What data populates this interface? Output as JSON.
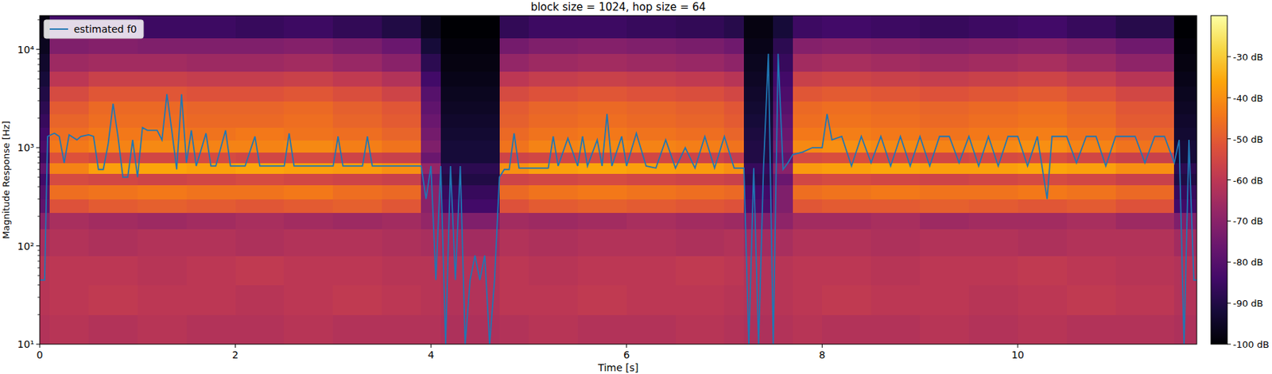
{
  "chart_data": {
    "type": "spectrogram",
    "title": "block size = 1024, hop size = 64",
    "x_label": "Time [s]",
    "y_label": "Magnitude Response [Hz]",
    "xlim": [
      0,
      11.83
    ],
    "xticks": [
      0,
      2,
      4,
      6,
      8,
      10
    ],
    "ylim": [
      10,
      22050
    ],
    "yticks": [
      {
        "value": 10,
        "label": "10¹"
      },
      {
        "value": 100,
        "label": "10²"
      },
      {
        "value": 1000,
        "label": "10³"
      },
      {
        "value": 10000,
        "label": "10⁴"
      }
    ],
    "log": "y",
    "grid": false,
    "legend": "upper left",
    "time_edges": [
      0,
      0.1,
      0.5,
      1.0,
      1.5,
      2.0,
      2.5,
      3.0,
      3.5,
      3.9,
      4.1,
      4.7,
      5.0,
      5.5,
      6.0,
      6.5,
      7.0,
      7.2,
      7.5,
      7.7,
      8.0,
      8.5,
      9.0,
      9.5,
      10.0,
      10.5,
      11.0,
      11.6,
      11.83
    ],
    "freq_edges": [
      10,
      20,
      40,
      80,
      150,
      220,
      300,
      420,
      550,
      700,
      900,
      1200,
      1600,
      2200,
      3000,
      4200,
      6000,
      9000,
      13000,
      22050
    ],
    "cells": [
      [
        -62,
        -61,
        -62,
        -61,
        -62,
        -62,
        -61,
        -62,
        -62,
        -62,
        -63,
        -62,
        -61,
        -62,
        -62,
        -61,
        -62,
        -63,
        -62,
        -61,
        -62,
        -62,
        -61,
        -62,
        -61,
        -62,
        -62,
        -63
      ],
      [
        -61,
        -60,
        -59,
        -60,
        -60,
        -61,
        -60,
        -59,
        -60,
        -61,
        -62,
        -60,
        -60,
        -59,
        -60,
        -60,
        -61,
        -62,
        -61,
        -60,
        -59,
        -60,
        -60,
        -61,
        -60,
        -59,
        -60,
        -62
      ],
      [
        -61,
        -60,
        -60,
        -61,
        -60,
        -59,
        -60,
        -60,
        -61,
        -61,
        -62,
        -60,
        -61,
        -60,
        -60,
        -59,
        -60,
        -62,
        -61,
        -60,
        -60,
        -61,
        -60,
        -60,
        -59,
        -60,
        -61,
        -62
      ],
      [
        -64,
        -62,
        -63,
        -62,
        -62,
        -63,
        -62,
        -62,
        -63,
        -64,
        -65,
        -62,
        -63,
        -62,
        -62,
        -63,
        -62,
        -65,
        -64,
        -62,
        -62,
        -63,
        -62,
        -62,
        -63,
        -62,
        -62,
        -65
      ],
      [
        -70,
        -64,
        -65,
        -66,
        -65,
        -64,
        -65,
        -66,
        -65,
        -68,
        -72,
        -65,
        -66,
        -65,
        -64,
        -65,
        -66,
        -72,
        -69,
        -65,
        -65,
        -64,
        -66,
        -65,
        -65,
        -64,
        -66,
        -72
      ],
      [
        -78,
        -52,
        -50,
        -49,
        -50,
        -51,
        -50,
        -49,
        -51,
        -70,
        -84,
        -52,
        -50,
        -49,
        -50,
        -51,
        -52,
        -82,
        -72,
        -51,
        -50,
        -50,
        -49,
        -50,
        -51,
        -50,
        -52,
        -84
      ],
      [
        -80,
        -46,
        -45,
        -44,
        -45,
        -45,
        -44,
        -46,
        -47,
        -70,
        -86,
        -47,
        -45,
        -44,
        -45,
        -46,
        -47,
        -84,
        -72,
        -46,
        -45,
        -44,
        -45,
        -45,
        -44,
        -45,
        -47,
        -86
      ],
      [
        -84,
        -54,
        -55,
        -56,
        -55,
        -54,
        -55,
        -56,
        -57,
        -75,
        -90,
        -56,
        -55,
        -54,
        -55,
        -56,
        -57,
        -88,
        -76,
        -55,
        -54,
        -55,
        -56,
        -55,
        -54,
        -55,
        -57,
        -90
      ],
      [
        -78,
        -42,
        -37,
        -36,
        -37,
        -36,
        -37,
        -38,
        -40,
        -68,
        -88,
        -40,
        -37,
        -36,
        -37,
        -38,
        -40,
        -86,
        -70,
        -38,
        -37,
        -36,
        -37,
        -37,
        -36,
        -37,
        -40,
        -88
      ],
      [
        -85,
        -52,
        -54,
        -55,
        -54,
        -55,
        -54,
        -56,
        -57,
        -76,
        -92,
        -56,
        -55,
        -54,
        -55,
        -56,
        -58,
        -90,
        -78,
        -54,
        -53,
        -54,
        -55,
        -54,
        -53,
        -55,
        -57,
        -92
      ],
      [
        -82,
        -44,
        -42,
        -41,
        -42,
        -42,
        -41,
        -43,
        -45,
        -72,
        -92,
        -45,
        -42,
        -41,
        -42,
        -43,
        -45,
        -90,
        -74,
        -41,
        -40,
        -41,
        -42,
        -41,
        -40,
        -42,
        -45,
        -92
      ],
      [
        -84,
        -46,
        -44,
        -44,
        -45,
        -44,
        -45,
        -46,
        -48,
        -74,
        -93,
        -47,
        -45,
        -44,
        -45,
        -46,
        -48,
        -91,
        -76,
        -44,
        -43,
        -44,
        -45,
        -44,
        -43,
        -45,
        -48,
        -93
      ],
      [
        -86,
        -48,
        -46,
        -46,
        -47,
        -47,
        -46,
        -48,
        -50,
        -76,
        -94,
        -49,
        -47,
        -46,
        -47,
        -48,
        -50,
        -92,
        -78,
        -46,
        -45,
        -46,
        -47,
        -46,
        -45,
        -47,
        -50,
        -94
      ],
      [
        -88,
        -50,
        -47,
        -47,
        -48,
        -48,
        -47,
        -49,
        -51,
        -78,
        -95,
        -50,
        -48,
        -47,
        -48,
        -49,
        -51,
        -93,
        -80,
        -47,
        -46,
        -47,
        -48,
        -47,
        -46,
        -48,
        -51,
        -95
      ],
      [
        -90,
        -54,
        -51,
        -51,
        -52,
        -52,
        -51,
        -53,
        -56,
        -80,
        -96,
        -54,
        -52,
        -51,
        -52,
        -53,
        -55,
        -94,
        -82,
        -51,
        -50,
        -51,
        -52,
        -51,
        -50,
        -52,
        -55,
        -96
      ],
      [
        -92,
        -60,
        -57,
        -57,
        -58,
        -58,
        -57,
        -59,
        -62,
        -84,
        -97,
        -60,
        -58,
        -57,
        -58,
        -59,
        -61,
        -95,
        -84,
        -57,
        -56,
        -57,
        -58,
        -57,
        -56,
        -58,
        -61,
        -97
      ],
      [
        -94,
        -66,
        -65,
        -65,
        -66,
        -66,
        -65,
        -67,
        -70,
        -88,
        -98,
        -68,
        -66,
        -65,
        -66,
        -67,
        -69,
        -96,
        -86,
        -65,
        -64,
        -65,
        -66,
        -65,
        -64,
        -66,
        -69,
        -98
      ],
      [
        -96,
        -72,
        -71,
        -72,
        -72,
        -72,
        -71,
        -73,
        -76,
        -92,
        -99,
        -74,
        -72,
        -71,
        -72,
        -73,
        -75,
        -97,
        -88,
        -71,
        -70,
        -71,
        -72,
        -71,
        -70,
        -72,
        -75,
        -99
      ],
      [
        -98,
        -84,
        -84,
        -85,
        -85,
        -86,
        -85,
        -87,
        -90,
        -96,
        -100,
        -87,
        -85,
        -85,
        -86,
        -87,
        -89,
        -98,
        -92,
        -85,
        -84,
        -85,
        -86,
        -85,
        -84,
        -86,
        -89,
        -100
      ]
    ],
    "colorbar": {
      "range": [
        -100,
        -20
      ],
      "ticks": [
        {
          "value": -30,
          "label": "-30 dB"
        },
        {
          "value": -40,
          "label": "-40 dB"
        },
        {
          "value": -50,
          "label": "-50 dB"
        },
        {
          "value": -60,
          "label": "-60 dB"
        },
        {
          "value": -70,
          "label": "-70 dB"
        },
        {
          "value": -80,
          "label": "-80 dB"
        },
        {
          "value": -90,
          "label": "-90 dB"
        },
        {
          "value": -100,
          "label": "-100 dB"
        }
      ]
    },
    "series": [
      {
        "name": "estimated f0",
        "color": "#1f77b4",
        "type": "line",
        "x": [
          0.0,
          0.05,
          0.08,
          0.15,
          0.2,
          0.25,
          0.3,
          0.38,
          0.42,
          0.5,
          0.55,
          0.6,
          0.65,
          0.7,
          0.75,
          0.8,
          0.85,
          0.9,
          0.95,
          1.0,
          1.05,
          1.1,
          1.2,
          1.25,
          1.3,
          1.35,
          1.4,
          1.45,
          1.5,
          1.55,
          1.6,
          1.7,
          1.75,
          1.8,
          1.9,
          1.95,
          2.1,
          2.2,
          2.25,
          2.5,
          2.55,
          2.6,
          2.8,
          3.0,
          3.05,
          3.1,
          3.3,
          3.35,
          3.4,
          3.5,
          3.6,
          3.7,
          3.8,
          3.9,
          3.95,
          4.0,
          4.05,
          4.1,
          4.15,
          4.2,
          4.25,
          4.3,
          4.35,
          4.4,
          4.45,
          4.5,
          4.55,
          4.6,
          4.65,
          4.7,
          4.75,
          4.8,
          4.85,
          4.9,
          5.0,
          5.1,
          5.2,
          5.25,
          5.3,
          5.4,
          5.5,
          5.55,
          5.6,
          5.7,
          5.75,
          5.8,
          5.85,
          5.95,
          6.0,
          6.1,
          6.2,
          6.3,
          6.4,
          6.5,
          6.6,
          6.7,
          6.8,
          6.9,
          7.0,
          7.1,
          7.2,
          7.25,
          7.3,
          7.35,
          7.4,
          7.45,
          7.5,
          7.55,
          7.6,
          7.65,
          7.7,
          7.8,
          7.9,
          8.0,
          8.05,
          8.1,
          8.2,
          8.3,
          8.4,
          8.5,
          8.6,
          8.7,
          8.8,
          8.9,
          9.0,
          9.1,
          9.2,
          9.3,
          9.4,
          9.5,
          9.6,
          9.7,
          9.8,
          9.9,
          10.0,
          10.1,
          10.2,
          10.3,
          10.35,
          10.5,
          10.6,
          10.7,
          10.8,
          10.9,
          11.0,
          11.1,
          11.2,
          11.3,
          11.4,
          11.5,
          11.6,
          11.65,
          11.7,
          11.75,
          11.8,
          11.83
        ],
        "values": [
          45,
          45,
          1300,
          1400,
          1300,
          700,
          1350,
          1200,
          1300,
          1350,
          1300,
          600,
          600,
          1100,
          2800,
          1300,
          500,
          500,
          1200,
          500,
          1600,
          1500,
          1500,
          1200,
          3500,
          1500,
          600,
          3500,
          700,
          1500,
          650,
          1400,
          650,
          650,
          1500,
          650,
          650,
          1300,
          650,
          650,
          1400,
          650,
          650,
          650,
          1300,
          650,
          650,
          1300,
          650,
          650,
          650,
          650,
          650,
          650,
          300,
          650,
          45,
          650,
          10,
          650,
          45,
          650,
          10,
          45,
          80,
          45,
          80,
          10,
          45,
          500,
          600,
          600,
          1400,
          620,
          620,
          620,
          620,
          1300,
          650,
          1250,
          650,
          1300,
          650,
          1200,
          650,
          2200,
          650,
          1300,
          650,
          1400,
          650,
          620,
          1200,
          620,
          1000,
          620,
          1300,
          620,
          1300,
          620,
          620,
          10,
          620,
          10,
          620,
          9000,
          10,
          9000,
          600,
          700,
          850,
          900,
          1000,
          1000,
          2200,
          1200,
          1300,
          650,
          1300,
          700,
          1300,
          650,
          1300,
          650,
          1300,
          650,
          1300,
          1300,
          700,
          1300,
          650,
          1300,
          650,
          1300,
          1300,
          650,
          1300,
          300,
          1300,
          1300,
          700,
          1300,
          1300,
          650,
          1300,
          1300,
          1300,
          700,
          1300,
          1300,
          700,
          1200,
          10,
          1200,
          45,
          45
        ]
      }
    ]
  }
}
